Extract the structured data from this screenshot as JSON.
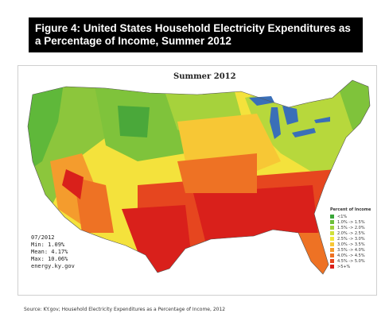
{
  "banner": {
    "title_line1": "Figure 4: United States Household Electricity Expenditures as",
    "title_line2": "a Percentage of Income, Summer 2012"
  },
  "map": {
    "title": "Summer 2012",
    "stats": {
      "period": "07/2012",
      "min": "Min: 1.09%",
      "mean": "Mean: 4.17%",
      "max": "Max: 10.06%",
      "site": "energy.ky.gov"
    },
    "legend": {
      "title": "Percent of Income",
      "items": [
        {
          "label": "<1%",
          "color": "#3aa63a"
        },
        {
          "label": "1.0% -> 1.5%",
          "color": "#6cbf3a"
        },
        {
          "label": "1.5% -> 2.0%",
          "color": "#9fd13d"
        },
        {
          "label": "2.0% -> 2.5%",
          "color": "#cfe03a"
        },
        {
          "label": "2.5% -> 3.0%",
          "color": "#f0e83a"
        },
        {
          "label": "3.0% -> 3.5%",
          "color": "#f7c735"
        },
        {
          "label": "3.5% -> 4.0%",
          "color": "#f49c2d"
        },
        {
          "label": "4.0% -> 4.5%",
          "color": "#ee7224"
        },
        {
          "label": "4.5% -> 5.0%",
          "color": "#e6461f"
        },
        {
          "label": ">5+%",
          "color": "#d9201b"
        }
      ]
    },
    "water_color": "#3a6fb8"
  },
  "source": "Source: KY.gov; Household Electricity Expenditures as a Percentage of Income, 2012"
}
